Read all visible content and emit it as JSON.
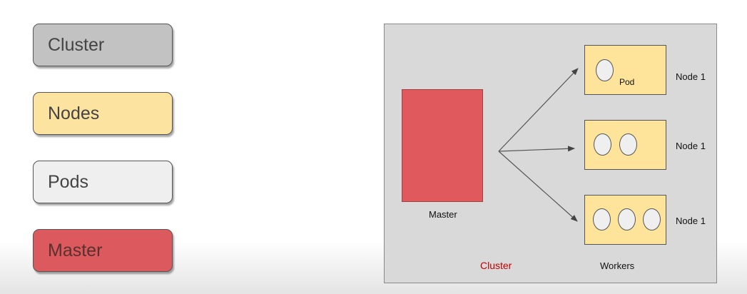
{
  "legend": {
    "cluster": "Cluster",
    "nodes": "Nodes",
    "pods": "Pods",
    "master": "Master"
  },
  "diagram": {
    "master_label": "Master",
    "cluster_label": "Cluster",
    "workers_label": "Workers",
    "nodes": [
      {
        "label": "Node 1",
        "pod_count": 1,
        "pod_label": "Pod"
      },
      {
        "label": "Node 1",
        "pod_count": 2
      },
      {
        "label": "Node 1",
        "pod_count": 3
      }
    ]
  },
  "colors": {
    "cluster": "#c2c2c2",
    "nodes": "#fde3a0",
    "pods": "#efefef",
    "master": "#dc5a5d",
    "cluster_label": "#c00000"
  }
}
